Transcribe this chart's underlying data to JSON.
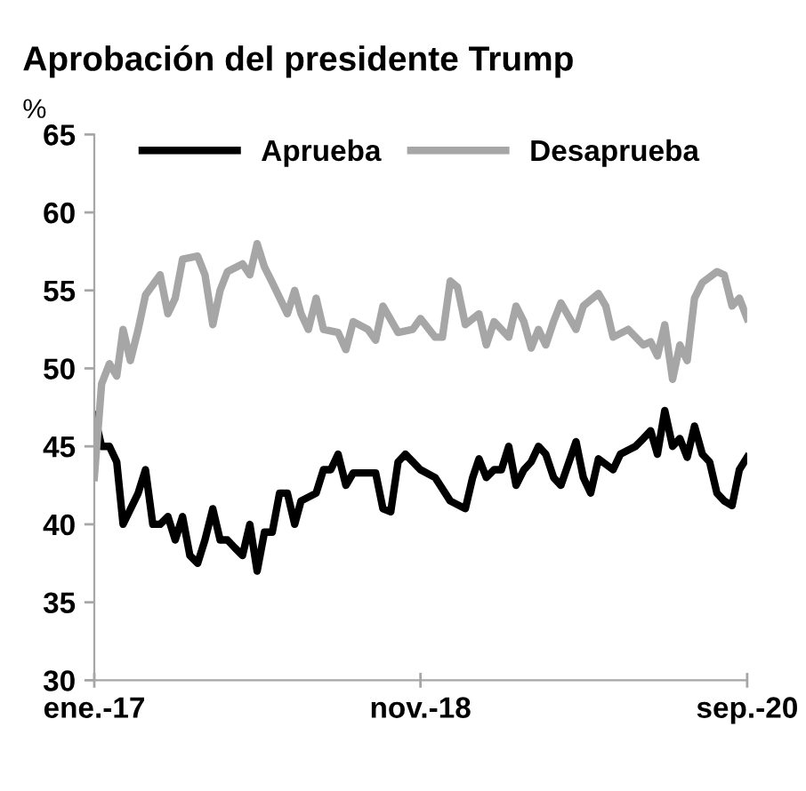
{
  "chart_data": {
    "type": "line",
    "title": "Aprobación del presidente Trump",
    "ylabel": "%",
    "xlim": [
      "2017-01-01",
      "2020-09-01"
    ],
    "xticks": [
      {
        "value": "2017-01-01",
        "label": "ene.-17"
      },
      {
        "value": "2018-11-01",
        "label": "nov.-18"
      },
      {
        "value": "2020-09-01",
        "label": "sep.-20"
      }
    ],
    "ylim": [
      30,
      65
    ],
    "yticks": [
      30,
      35,
      40,
      45,
      50,
      55,
      60,
      65
    ],
    "grid": false,
    "legend": "top",
    "marker": "none",
    "line_style": "solid",
    "series": [
      {
        "name": "Aprueba",
        "color": "#000000",
        "x": [
          "2017-01-01",
          "2017-01-16",
          "2017-02-01",
          "2017-02-16",
          "2017-03-01",
          "2017-04-01",
          "2017-04-16",
          "2017-05-01",
          "2017-05-16",
          "2017-06-01",
          "2017-06-16",
          "2017-07-01",
          "2017-07-16",
          "2017-08-01",
          "2017-08-16",
          "2017-09-01",
          "2017-09-16",
          "2017-10-01",
          "2017-10-16",
          "2017-11-01",
          "2017-11-16",
          "2017-12-01",
          "2017-12-16",
          "2018-01-01",
          "2018-01-16",
          "2018-02-01",
          "2018-02-16",
          "2018-03-01",
          "2018-04-01",
          "2018-04-16",
          "2018-05-01",
          "2018-05-16",
          "2018-06-01",
          "2018-06-16",
          "2018-08-01",
          "2018-08-16",
          "2018-09-01",
          "2018-09-16",
          "2018-10-01",
          "2018-11-01",
          "2018-12-01",
          "2019-01-01",
          "2019-02-01",
          "2019-02-16",
          "2019-03-01",
          "2019-03-16",
          "2019-04-01",
          "2019-04-16",
          "2019-05-01",
          "2019-05-16",
          "2019-06-01",
          "2019-06-16",
          "2019-07-01",
          "2019-07-16",
          "2019-08-01",
          "2019-08-16",
          "2019-09-16",
          "2019-10-01",
          "2019-10-16",
          "2019-11-01",
          "2019-12-01",
          "2019-12-16",
          "2020-01-16",
          "2020-02-01",
          "2020-02-16",
          "2020-03-01",
          "2020-03-16",
          "2020-04-01",
          "2020-04-16",
          "2020-05-01",
          "2020-05-16",
          "2020-06-01",
          "2020-06-16",
          "2020-07-01",
          "2020-07-16",
          "2020-08-01",
          "2020-08-16",
          "2020-09-01"
        ],
        "values": [
          47,
          45,
          45,
          44,
          40,
          42,
          43.5,
          40,
          40,
          40.5,
          39,
          40.5,
          38,
          37.5,
          39,
          41,
          39,
          39,
          38.5,
          38,
          40,
          37,
          39.5,
          39.5,
          42,
          42,
          40,
          41.5,
          42,
          43.5,
          43.5,
          44.5,
          42.5,
          43.3,
          43.3,
          41,
          40.8,
          44,
          44.5,
          43.5,
          43,
          41.5,
          41,
          43,
          44.2,
          43,
          43.5,
          43.5,
          45,
          42.5,
          43.5,
          44,
          45,
          44.5,
          43,
          42.5,
          45.3,
          43,
          42,
          44.2,
          43.5,
          44.5,
          45,
          45.5,
          46,
          44.5,
          47.3,
          45,
          45.5,
          44.3,
          46.3,
          44.5,
          44,
          42,
          41.5,
          41.2,
          43.5,
          44.3
        ]
      },
      {
        "name": "Desaprueba",
        "color": "#a6a6a6",
        "x": [
          "2017-01-01",
          "2017-01-16",
          "2017-02-01",
          "2017-02-16",
          "2017-03-01",
          "2017-03-16",
          "2017-04-01",
          "2017-04-16",
          "2017-05-16",
          "2017-06-01",
          "2017-06-16",
          "2017-07-01",
          "2017-08-01",
          "2017-08-16",
          "2017-09-01",
          "2017-09-16",
          "2017-10-01",
          "2017-11-01",
          "2017-11-16",
          "2017-12-01",
          "2017-12-16",
          "2018-01-01",
          "2018-02-01",
          "2018-02-16",
          "2018-03-01",
          "2018-03-16",
          "2018-04-01",
          "2018-04-16",
          "2018-05-16",
          "2018-06-01",
          "2018-06-16",
          "2018-07-16",
          "2018-08-01",
          "2018-08-16",
          "2018-09-16",
          "2018-10-16",
          "2018-11-01",
          "2018-12-01",
          "2018-12-16",
          "2019-01-01",
          "2019-01-16",
          "2019-02-01",
          "2019-03-01",
          "2019-03-16",
          "2019-04-01",
          "2019-05-01",
          "2019-05-16",
          "2019-06-01",
          "2019-06-16",
          "2019-07-01",
          "2019-07-16",
          "2019-08-01",
          "2019-08-16",
          "2019-09-16",
          "2019-10-01",
          "2019-11-01",
          "2019-11-16",
          "2019-12-01",
          "2020-01-01",
          "2020-02-01",
          "2020-02-16",
          "2020-03-01",
          "2020-03-16",
          "2020-04-01",
          "2020-04-16",
          "2020-05-01",
          "2020-05-16",
          "2020-06-01",
          "2020-07-01",
          "2020-07-16",
          "2020-08-01",
          "2020-08-16",
          "2020-09-01"
        ],
        "values": [
          43,
          49,
          50.3,
          49.5,
          52.5,
          50.5,
          52.5,
          54.7,
          56,
          53.5,
          54.5,
          57,
          57.2,
          56,
          52.8,
          55,
          56.2,
          56.7,
          56,
          58,
          56.5,
          55.5,
          53.5,
          55,
          53.5,
          52.5,
          54.5,
          52.5,
          52.3,
          51.2,
          53,
          52.5,
          51.8,
          54,
          52.3,
          52.5,
          53.2,
          52,
          52,
          55.6,
          55.2,
          52.8,
          53.5,
          51.5,
          53,
          52,
          54,
          53,
          51.3,
          52.5,
          51.5,
          53,
          54.2,
          52.5,
          54,
          54.8,
          54,
          52,
          52.5,
          51.5,
          51.7,
          50.8,
          52.8,
          49.3,
          51.5,
          50.5,
          54.5,
          55.5,
          56.2,
          56,
          54,
          54.5,
          53.2
        ]
      }
    ]
  }
}
